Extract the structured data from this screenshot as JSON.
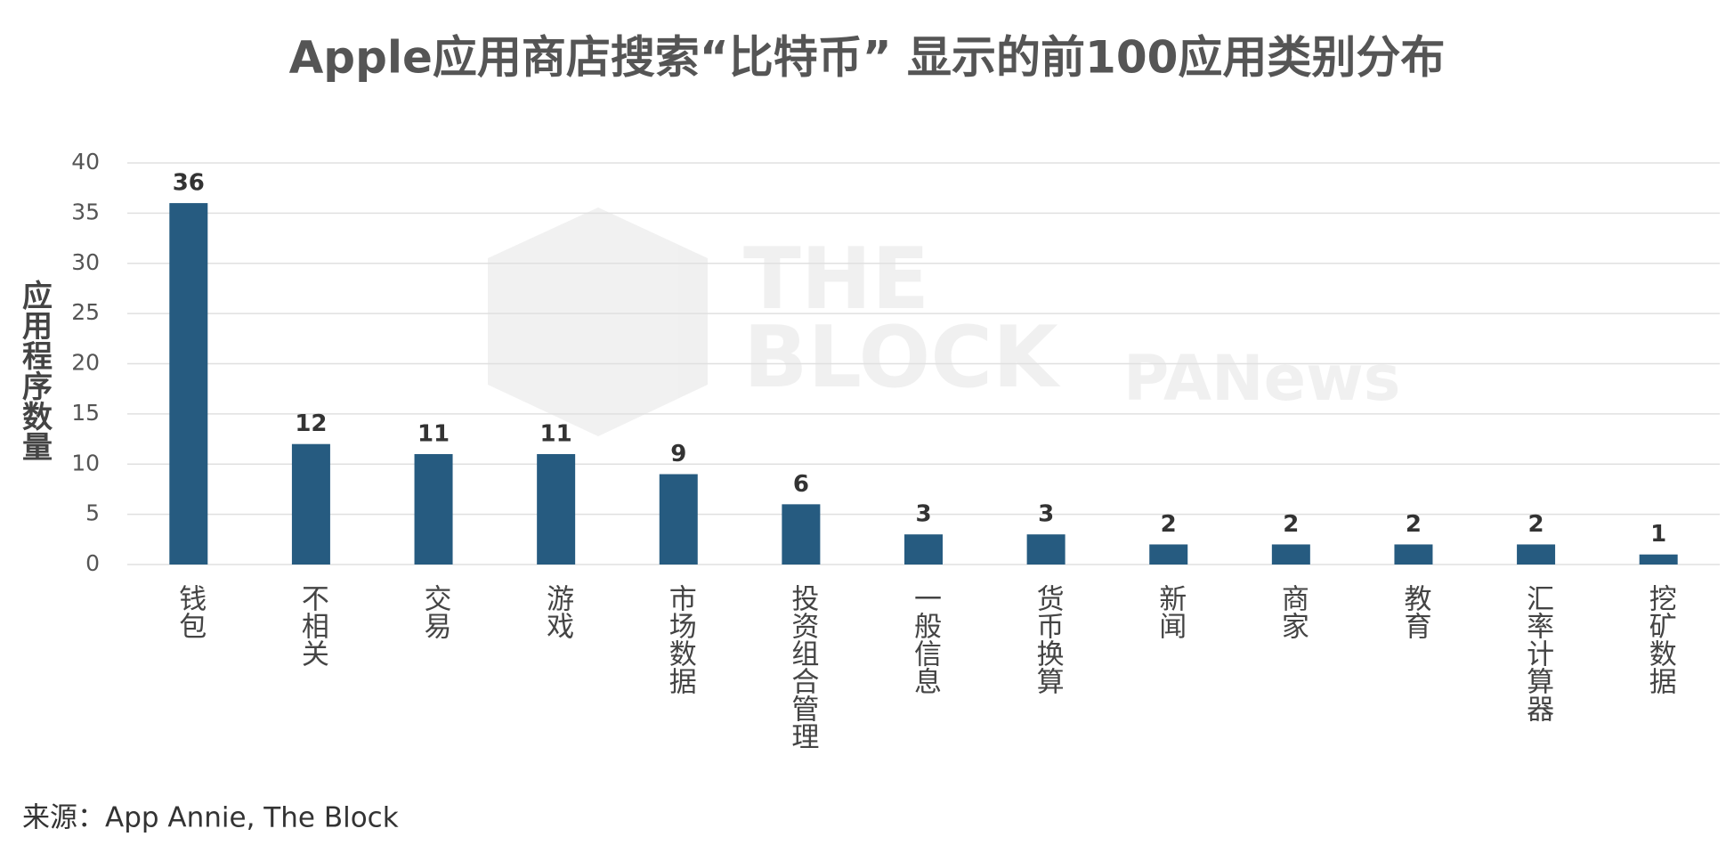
{
  "chart_data": {
    "type": "bar",
    "title": "Apple应用商店搜索“比特币” 显示的前100应用类别分布",
    "y_label": "应用程序数量",
    "categories": [
      "钱包",
      "不相关",
      "交易",
      "游戏",
      "市场数据",
      "投资组合管理",
      "一般信息",
      "货币换算",
      "新闻",
      "商家",
      "教育",
      "汇率计算器",
      "挖矿数据"
    ],
    "values": [
      36,
      12,
      11,
      11,
      9,
      6,
      3,
      3,
      2,
      2,
      2,
      2,
      1
    ],
    "color": "#265b80",
    "ylim": [
      0,
      40
    ],
    "yticks": [
      0,
      5,
      10,
      15,
      20,
      25,
      30,
      35,
      40
    ],
    "grid": true,
    "source": "来源：App Annie, The Block",
    "watermarks": [
      "THE",
      "BLOCK",
      "PANews"
    ]
  }
}
